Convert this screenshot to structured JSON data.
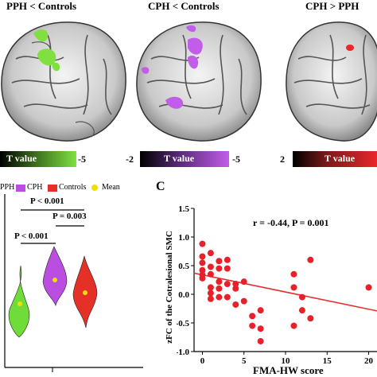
{
  "panel_a": {
    "titles": [
      "PPH < Controls",
      "CPH < Controls",
      "CPH > PPH"
    ],
    "colorbars": [
      {
        "label": "T value",
        "right": "-5",
        "left": "",
        "color": "#7fe040"
      },
      {
        "label": "T value",
        "right": "-5",
        "left": "-2",
        "color": "#c15de8"
      },
      {
        "label": "T value",
        "right": "",
        "left": "2",
        "color": "#e8272b"
      }
    ]
  },
  "panel_b": {
    "legend": [
      {
        "label": "PPH",
        "color": "#6fdc3a"
      },
      {
        "label": "CPH",
        "color": "#b94ee0"
      },
      {
        "label": "Controls",
        "color": "#e53028"
      },
      {
        "label": "Mean",
        "color": "#f0e000"
      }
    ],
    "comparisons": [
      "P < 0.001",
      "P = 0.003",
      "P < 0.001"
    ]
  },
  "panel_c": {
    "letter": "C",
    "stat_text": "r = -0.44, P = 0.001",
    "ylabel": "zFC of the Cotralesional SMC",
    "xlabel": "FMA-HW score"
  },
  "chart_data": {
    "type": "scatter",
    "xlabel": "FMA-HW score",
    "ylabel": "zFC of the Cotralesional SMC",
    "xlim": [
      -1,
      21
    ],
    "ylim": [
      -1.0,
      1.5
    ],
    "xticks": [
      "0",
      "5",
      "10",
      "15",
      "20"
    ],
    "yticks": [
      "1.5",
      "1.0",
      "0.5",
      "0.0",
      "-0.5",
      "-1.0"
    ],
    "points": [
      {
        "x": 0,
        "y": 0.88
      },
      {
        "x": 0,
        "y": 0.66
      },
      {
        "x": 0,
        "y": 0.55
      },
      {
        "x": 0,
        "y": 0.42
      },
      {
        "x": 0,
        "y": 0.34
      },
      {
        "x": 0,
        "y": 0.28
      },
      {
        "x": 1,
        "y": 0.72
      },
      {
        "x": 1,
        "y": 0.48
      },
      {
        "x": 1,
        "y": 0.35
      },
      {
        "x": 1,
        "y": 0.12
      },
      {
        "x": 1,
        "y": 0.02
      },
      {
        "x": 1,
        "y": -0.08
      },
      {
        "x": 2,
        "y": 0.58
      },
      {
        "x": 2,
        "y": 0.45
      },
      {
        "x": 2,
        "y": 0.22
      },
      {
        "x": 2,
        "y": 0.1
      },
      {
        "x": 2,
        "y": -0.05
      },
      {
        "x": 3,
        "y": 0.6
      },
      {
        "x": 3,
        "y": 0.45
      },
      {
        "x": 3,
        "y": 0.18
      },
      {
        "x": 3,
        "y": -0.05
      },
      {
        "x": 4,
        "y": 0.18
      },
      {
        "x": 4,
        "y": 0.1
      },
      {
        "x": 4,
        "y": -0.18
      },
      {
        "x": 5,
        "y": 0.22
      },
      {
        "x": 5,
        "y": -0.12
      },
      {
        "x": 6,
        "y": -0.38
      },
      {
        "x": 6,
        "y": -0.55
      },
      {
        "x": 7,
        "y": -0.82
      },
      {
        "x": 7,
        "y": -0.6
      },
      {
        "x": 7,
        "y": -0.28
      },
      {
        "x": 11,
        "y": 0.35
      },
      {
        "x": 11,
        "y": 0.12
      },
      {
        "x": 11,
        "y": -0.55
      },
      {
        "x": 12,
        "y": -0.05
      },
      {
        "x": 12,
        "y": -0.28
      },
      {
        "x": 13,
        "y": 0.6
      },
      {
        "x": 13,
        "y": -0.42
      },
      {
        "x": 20,
        "y": 0.12
      }
    ],
    "fit": {
      "x": [
        -1,
        21
      ],
      "y": [
        0.37,
        -0.29
      ]
    },
    "annotation": "r = -0.44, P = 0.001"
  }
}
